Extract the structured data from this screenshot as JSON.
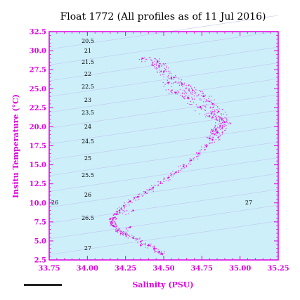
{
  "chart_data": {
    "type": "scatter",
    "title": "Float 1772  (All profiles as of 11 Jul 2016)",
    "xlabel": "Salinity (PSU)",
    "ylabel": "Insitu Temperature (°C)",
    "xlim": [
      33.75,
      35.25
    ],
    "ylim": [
      2.5,
      32.5
    ],
    "x_ticks": [
      "33.75",
      "34.00",
      "34.25",
      "34.50",
      "34.75",
      "35.00",
      "35.25"
    ],
    "y_ticks": [
      "2.5",
      "5.0",
      "7.5",
      "10.0",
      "12.5",
      "15.0",
      "17.5",
      "20.0",
      "22.5",
      "25.0",
      "27.5",
      "30.0",
      "32.5"
    ],
    "grid": false,
    "point_color": "#e000e0",
    "background_color": "#cdeffa",
    "axis_color": "#e000e0",
    "density_contours": {
      "labels": [
        "20.5",
        "21",
        "21.5",
        "22",
        "22.5",
        "23",
        "23.5",
        "24",
        "24.5",
        "25",
        "25.5",
        "26",
        "26",
        "26.5",
        "27",
        "27"
      ],
      "color": "#c0c6f0"
    },
    "series": [
      {
        "values": [
          {
            "x": 34.49,
            "y": 3.3
          },
          {
            "x": 34.47,
            "y": 3.6
          },
          {
            "x": 34.44,
            "y": 4.0
          },
          {
            "x": 34.4,
            "y": 4.4
          },
          {
            "x": 34.35,
            "y": 4.9
          },
          {
            "x": 34.3,
            "y": 5.4
          },
          {
            "x": 34.25,
            "y": 5.9
          },
          {
            "x": 34.2,
            "y": 6.4
          },
          {
            "x": 34.17,
            "y": 7.0
          },
          {
            "x": 34.16,
            "y": 7.5
          },
          {
            "x": 34.17,
            "y": 8.0
          },
          {
            "x": 34.19,
            "y": 8.5
          },
          {
            "x": 34.21,
            "y": 9.0
          },
          {
            "x": 34.24,
            "y": 9.6
          },
          {
            "x": 34.28,
            "y": 10.2
          },
          {
            "x": 34.33,
            "y": 10.8
          },
          {
            "x": 34.38,
            "y": 11.4
          },
          {
            "x": 34.43,
            "y": 12.0
          },
          {
            "x": 34.48,
            "y": 12.6
          },
          {
            "x": 34.53,
            "y": 13.3
          },
          {
            "x": 34.58,
            "y": 14.0
          },
          {
            "x": 34.63,
            "y": 14.8
          },
          {
            "x": 34.68,
            "y": 15.6
          },
          {
            "x": 34.73,
            "y": 16.5
          },
          {
            "x": 34.78,
            "y": 17.4
          },
          {
            "x": 34.82,
            "y": 18.3
          },
          {
            "x": 34.85,
            "y": 19.2
          },
          {
            "x": 34.87,
            "y": 20.1
          },
          {
            "x": 34.88,
            "y": 21.0
          },
          {
            "x": 34.86,
            "y": 22.0
          },
          {
            "x": 34.82,
            "y": 23.0
          },
          {
            "x": 34.76,
            "y": 24.0
          },
          {
            "x": 34.69,
            "y": 24.8
          },
          {
            "x": 34.62,
            "y": 25.6
          },
          {
            "x": 34.55,
            "y": 26.4
          },
          {
            "x": 34.5,
            "y": 27.2
          },
          {
            "x": 34.47,
            "y": 28.0
          },
          {
            "x": 34.46,
            "y": 28.6
          },
          {
            "x": 34.36,
            "y": 29.0
          },
          {
            "x": 34.53,
            "y": 25.8
          },
          {
            "x": 34.58,
            "y": 24.5
          },
          {
            "x": 34.66,
            "y": 23.8
          },
          {
            "x": 34.74,
            "y": 22.6
          },
          {
            "x": 34.8,
            "y": 21.4
          },
          {
            "x": 34.9,
            "y": 20.6
          },
          {
            "x": 34.84,
            "y": 19.6
          },
          {
            "x": 34.8,
            "y": 18.5
          },
          {
            "x": 34.28,
            "y": 6.8
          },
          {
            "x": 34.22,
            "y": 6.0
          },
          {
            "x": 34.15,
            "y": 7.9
          },
          {
            "x": 34.3,
            "y": 9.0
          },
          {
            "x": 34.35,
            "y": 4.4
          }
        ]
      }
    ]
  }
}
